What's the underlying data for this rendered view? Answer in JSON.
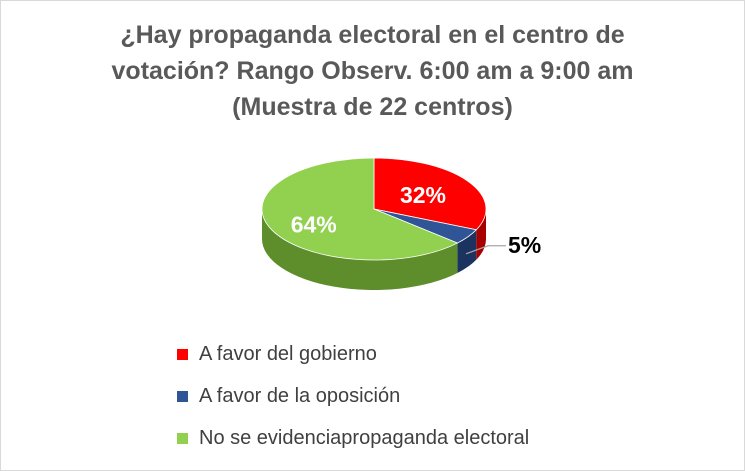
{
  "chart_data": {
    "type": "pie",
    "title_lines": [
      "¿Hay propaganda electoral en el centro de",
      "votación? Rango Observ. 6:00 am a 9:00 am",
      "(Muestra de 22 centros)"
    ],
    "slices": [
      {
        "label": "A favor del gobierno",
        "value": 32,
        "display": "32%",
        "color": "#ff0000",
        "side_color": "#a80000"
      },
      {
        "label": "A favor de la oposición",
        "value": 5,
        "display": "5%",
        "color": "#2f5597",
        "side_color": "#1c3360"
      },
      {
        "label": "No se evidenciapropaganda electoral",
        "value": 64,
        "display": "64%",
        "color": "#92d050",
        "side_color": "#5e8e2c"
      }
    ],
    "legend_position": "bottom",
    "style": "3d-pie"
  }
}
